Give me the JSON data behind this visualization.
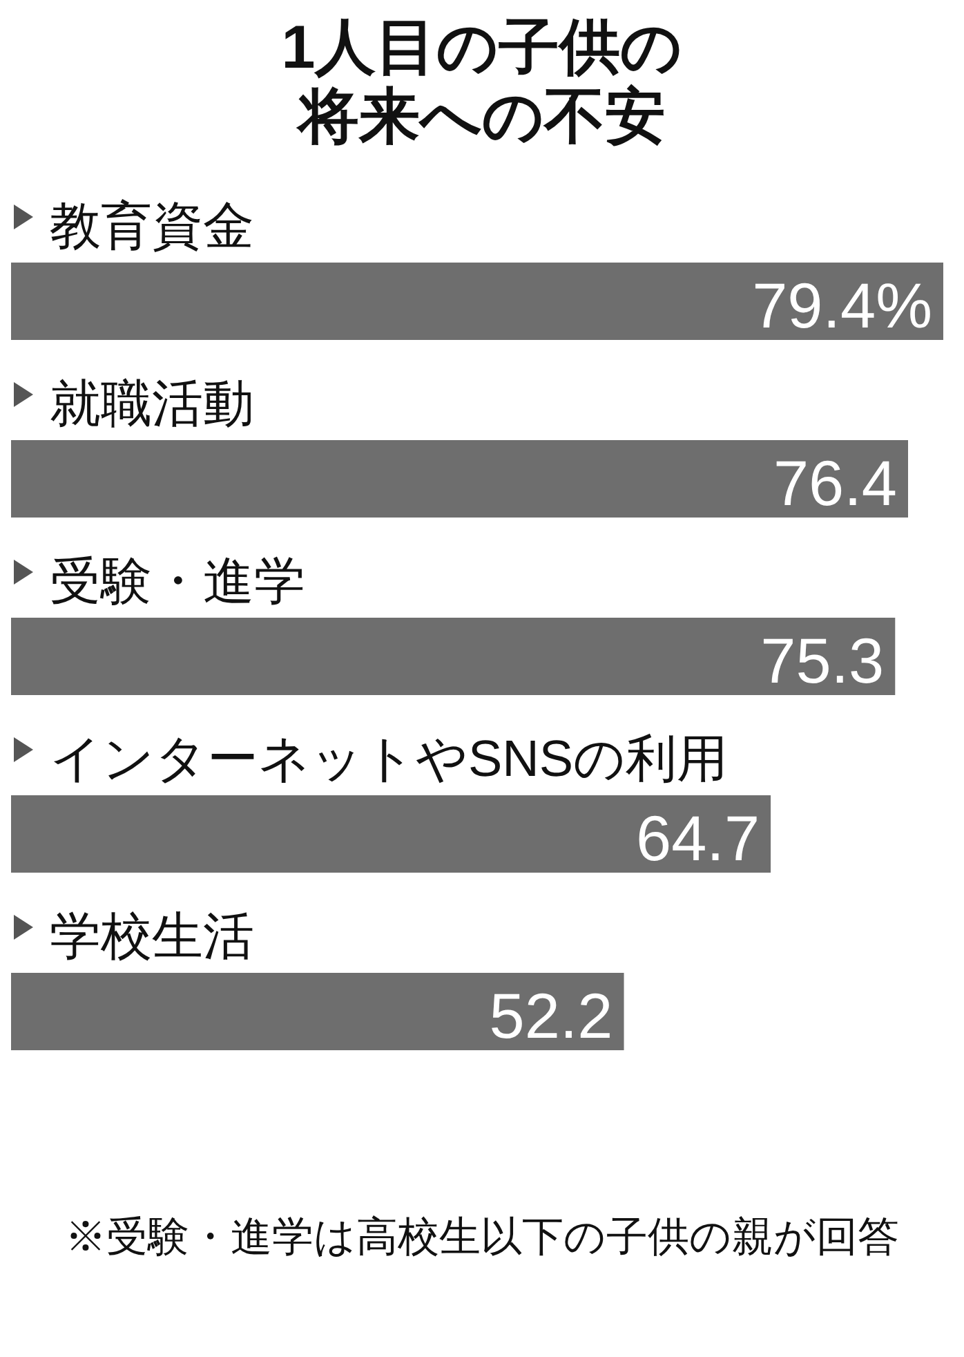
{
  "chart_data": {
    "type": "bar",
    "orientation": "horizontal",
    "title": "1人目の子供の将来への不安",
    "categories": [
      "教育資金",
      "就職活動",
      "受験・進学",
      "インターネットやSNSの利用",
      "学校生活"
    ],
    "values": [
      79.4,
      76.4,
      75.3,
      64.7,
      52.2
    ],
    "value_labels": [
      "79.4%",
      "76.4",
      "75.3",
      "64.7",
      "52.2"
    ],
    "color": "#6e6e6e",
    "annotations": [
      "※受験・進学は高校生以下の子供の親が回答"
    ]
  }
}
